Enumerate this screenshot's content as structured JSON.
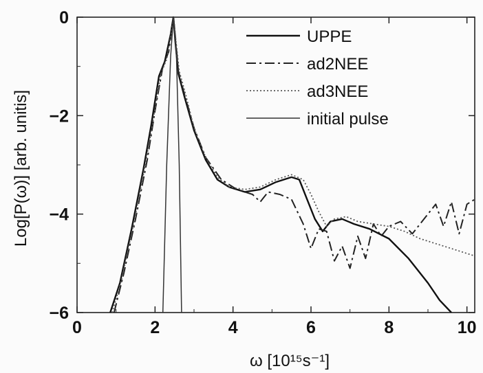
{
  "chart_data": {
    "type": "line",
    "xlabel": "ω [10¹⁵s⁻¹]",
    "ylabel": "Log[P(ω)] [arb. unitis]",
    "xlim": [
      0,
      10.2
    ],
    "ylim": [
      -6,
      0
    ],
    "xticks": [
      0,
      2,
      4,
      6,
      8,
      10
    ],
    "yticks": [
      0,
      -2,
      -4,
      -6
    ],
    "legend_position": "top-right",
    "grid": false,
    "series": [
      {
        "name": "UPPE",
        "style": "solid",
        "x": [
          0.85,
          1.1,
          1.4,
          1.7,
          1.9,
          2.1,
          2.25,
          2.4,
          2.47,
          2.52,
          2.6,
          2.75,
          3.0,
          3.3,
          3.6,
          3.9,
          4.3,
          4.7,
          5.1,
          5.5,
          5.7,
          5.9,
          6.1,
          6.3,
          6.5,
          6.8,
          7.1,
          7.5,
          8.0,
          8.5,
          9.0,
          9.3,
          9.6
        ],
        "y": [
          -6.0,
          -5.4,
          -4.3,
          -3.1,
          -2.2,
          -1.2,
          -0.9,
          -0.35,
          0.0,
          -0.5,
          -1.15,
          -1.6,
          -2.3,
          -2.9,
          -3.3,
          -3.45,
          -3.55,
          -3.5,
          -3.35,
          -3.25,
          -3.3,
          -3.7,
          -4.1,
          -4.35,
          -4.15,
          -4.1,
          -4.2,
          -4.3,
          -4.5,
          -4.9,
          -5.4,
          -5.75,
          -6.0
        ]
      },
      {
        "name": "ad2NEE",
        "style": "dash-dot",
        "x": [
          0.95,
          1.2,
          1.5,
          1.8,
          2.0,
          2.2,
          2.35,
          2.47,
          2.52,
          2.6,
          2.75,
          3.0,
          3.3,
          3.7,
          4.1,
          4.5,
          4.7,
          4.9,
          5.2,
          5.5,
          5.8,
          6.0,
          6.2,
          6.4,
          6.6,
          6.8,
          7.0,
          7.2,
          7.4,
          7.6,
          7.8,
          8.0,
          8.3,
          8.6,
          8.9,
          9.2,
          9.4,
          9.6,
          9.8,
          10.0,
          10.2
        ],
        "y": [
          -6.0,
          -5.2,
          -4.1,
          -2.9,
          -1.9,
          -1.0,
          -0.7,
          0.0,
          -0.4,
          -1.1,
          -1.55,
          -2.25,
          -2.85,
          -3.3,
          -3.5,
          -3.6,
          -3.75,
          -3.55,
          -3.6,
          -3.7,
          -4.2,
          -4.7,
          -4.3,
          -4.35,
          -4.95,
          -4.65,
          -5.1,
          -4.45,
          -4.9,
          -4.2,
          -4.45,
          -4.25,
          -4.15,
          -4.4,
          -4.1,
          -3.8,
          -4.25,
          -3.75,
          -4.4,
          -3.8,
          -3.7
        ]
      },
      {
        "name": "ad3NEE",
        "style": "dotted",
        "x": [
          0.9,
          1.15,
          1.45,
          1.75,
          1.95,
          2.15,
          2.3,
          2.42,
          2.48,
          2.53,
          2.62,
          2.78,
          3.0,
          3.3,
          3.6,
          3.9,
          4.3,
          4.7,
          5.1,
          5.5,
          5.8,
          6.0,
          6.2,
          6.4,
          6.6,
          6.9,
          7.2,
          7.6,
          8.0,
          8.4,
          8.8,
          9.2,
          9.6,
          10.0,
          10.2
        ],
        "y": [
          -6.0,
          -5.3,
          -4.2,
          -3.0,
          -2.1,
          -1.15,
          -0.85,
          -0.3,
          0.0,
          -0.45,
          -1.1,
          -1.55,
          -2.25,
          -2.85,
          -3.25,
          -3.45,
          -3.5,
          -3.45,
          -3.3,
          -3.2,
          -3.3,
          -3.6,
          -3.95,
          -4.25,
          -4.1,
          -4.05,
          -4.15,
          -4.2,
          -4.25,
          -4.35,
          -4.5,
          -4.6,
          -4.7,
          -4.8,
          -4.85
        ]
      },
      {
        "name": "initial pulse",
        "style": "thin-solid",
        "x": [
          2.2,
          2.3,
          2.4,
          2.47,
          2.55,
          2.62,
          2.68
        ],
        "y": [
          -6.0,
          -3.0,
          -0.8,
          0.0,
          -0.8,
          -3.0,
          -6.0
        ]
      }
    ]
  }
}
